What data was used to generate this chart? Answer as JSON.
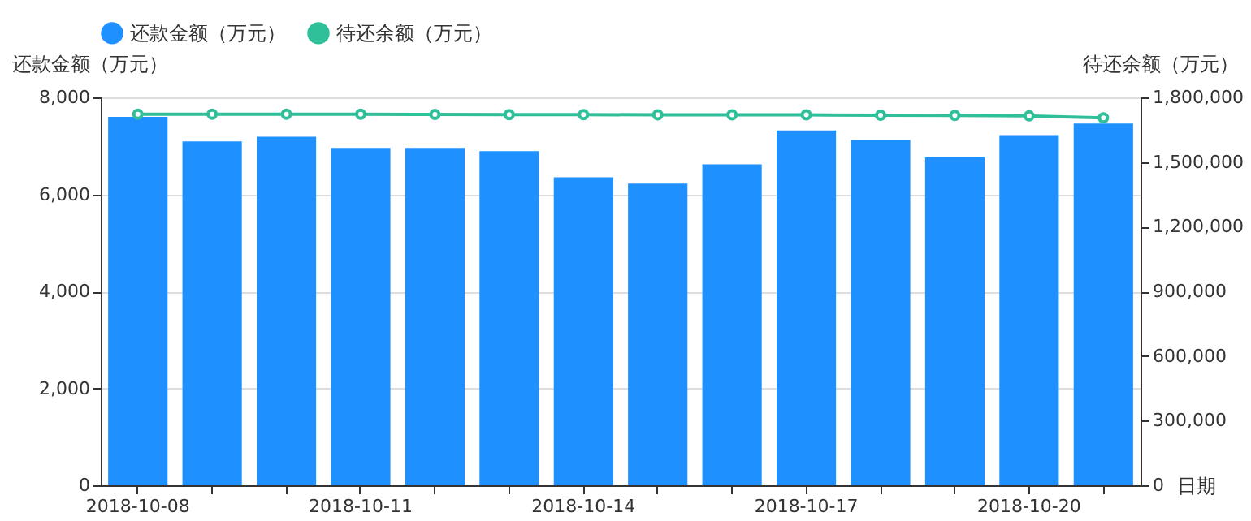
{
  "chart_data": {
    "type": "bar",
    "xlabel": "日期",
    "ylabel": "还款金额（万元）",
    "y2label": "待还余额（万元）",
    "categories": [
      "2018-10-08",
      null,
      null,
      "2018-10-11",
      null,
      null,
      "2018-10-14",
      null,
      null,
      "2018-10-17",
      null,
      null,
      "2018-10-20",
      null
    ],
    "series": [
      {
        "name": "还款金额（万元）",
        "color": "#1e90ff",
        "values": [
          7600,
          7090,
          7190,
          6960,
          6960,
          6890,
          6350,
          6220,
          6620,
          7320,
          7120,
          6760,
          7220,
          7460
        ]
      },
      {
        "name": "待还余额（万元）",
        "type": "line",
        "axis": "y2",
        "color": "#2fc09a",
        "values": [
          1722000,
          1722000,
          1722000,
          1722000,
          1721000,
          1720000,
          1720000,
          1719000,
          1719000,
          1719000,
          1717000,
          1716000,
          1714000,
          1705000
        ]
      }
    ],
    "ylim": [
      0,
      8000
    ],
    "yticks": [
      0,
      {
        "value": 2000,
        "label": "2,000"
      },
      {
        "value": 4000,
        "label": "4,000"
      },
      {
        "value": 6000,
        "label": "6,000"
      },
      {
        "value": 8000,
        "label": "8,000"
      }
    ],
    "y2lim": [
      0,
      1800000
    ],
    "y2ticks": [
      0,
      {
        "value": 300000,
        "label": "300,000"
      },
      {
        "value": 600000,
        "label": "600,000"
      },
      {
        "value": 900000,
        "label": "900,000"
      },
      {
        "value": 1200000,
        "label": "1,200,000"
      },
      {
        "value": 1500000,
        "label": "1,500,000"
      },
      {
        "value": 1800000,
        "label": "1,800,000"
      }
    ],
    "grid": "y",
    "legend": "top",
    "marker": "circle",
    "line_style": "solid"
  }
}
